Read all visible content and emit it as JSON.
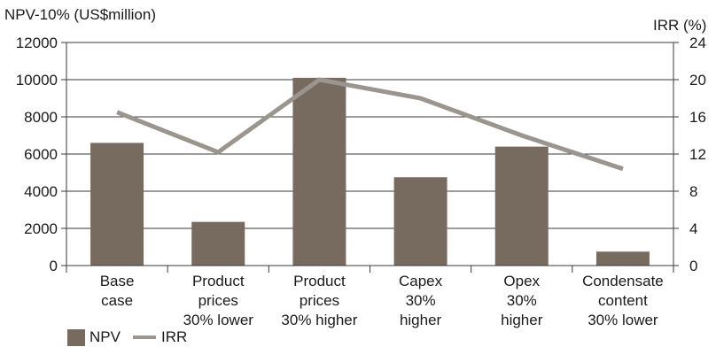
{
  "chart_data": {
    "type": "bar",
    "categories": [
      [
        "Base",
        "case"
      ],
      [
        "Product",
        "prices",
        "30% lower"
      ],
      [
        "Product",
        "prices",
        "30% higher"
      ],
      [
        "Capex",
        "30%",
        "higher"
      ],
      [
        "Opex",
        "30%",
        "higher"
      ],
      [
        "Condensate",
        "content",
        "30% lower"
      ]
    ],
    "series": [
      {
        "name": "NPV",
        "type": "bar",
        "axis": "left",
        "color": "#776b60",
        "values": [
          6600,
          2350,
          10100,
          4750,
          6400,
          750
        ]
      },
      {
        "name": "IRR",
        "type": "line",
        "axis": "right",
        "color": "#9b958f",
        "values": [
          16.5,
          12.2,
          20.0,
          18.0,
          14.0,
          10.4
        ]
      }
    ],
    "ylabel": "NPV-10% (US$million)",
    "y2label": "IRR (%)",
    "ylim": [
      0,
      12000
    ],
    "y2lim": [
      0,
      24
    ],
    "yticks": [
      0,
      2000,
      4000,
      6000,
      8000,
      10000,
      12000
    ],
    "y2ticks": [
      0,
      4,
      8,
      12,
      16,
      20,
      24
    ],
    "grid": true,
    "legend": "bottom-left"
  }
}
